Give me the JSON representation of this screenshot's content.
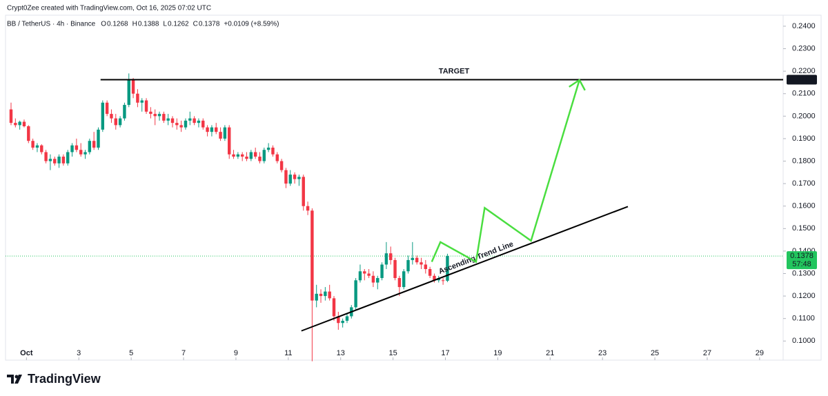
{
  "chart_data": {
    "type": "candlestick",
    "attribution": "Crypt0Zee created with TradingView.com, Oct 16, 2025 07:02 UTC",
    "symbol": "BB / TetherUS · 4h · Binance",
    "ohlc_header": [
      {
        "label": "O",
        "value": "0.1268"
      },
      {
        "label": "H",
        "value": "0.1388"
      },
      {
        "label": "L",
        "value": "0.1262"
      },
      {
        "label": "C",
        "value": "0.1378"
      }
    ],
    "change": "+0.0109 (+8.59%)",
    "brand": "TradingView",
    "up_color": "#089981",
    "down_color": "#f23645",
    "ohlc": [
      [
        0.203,
        0.206,
        0.196,
        0.197
      ],
      [
        0.197,
        0.199,
        0.195,
        0.196
      ],
      [
        0.196,
        0.198,
        0.194,
        0.1975
      ],
      [
        0.1975,
        0.1985,
        0.195,
        0.1955
      ],
      [
        0.1955,
        0.196,
        0.188,
        0.189
      ],
      [
        0.189,
        0.19,
        0.185,
        0.186
      ],
      [
        0.186,
        0.188,
        0.184,
        0.187
      ],
      [
        0.187,
        0.1875,
        0.183,
        0.184
      ],
      [
        0.184,
        0.185,
        0.179,
        0.18
      ],
      [
        0.18,
        0.183,
        0.176,
        0.181
      ],
      [
        0.181,
        0.182,
        0.178,
        0.179
      ],
      [
        0.179,
        0.183,
        0.177,
        0.182
      ],
      [
        0.182,
        0.183,
        0.178,
        0.179
      ],
      [
        0.179,
        0.185,
        0.178,
        0.184
      ],
      [
        0.184,
        0.188,
        0.182,
        0.187
      ],
      [
        0.187,
        0.19,
        0.184,
        0.185
      ],
      [
        0.185,
        0.188,
        0.182,
        0.183
      ],
      [
        0.183,
        0.185,
        0.181,
        0.184
      ],
      [
        0.184,
        0.19,
        0.183,
        0.189
      ],
      [
        0.189,
        0.193,
        0.185,
        0.186
      ],
      [
        0.186,
        0.195,
        0.185,
        0.194
      ],
      [
        0.194,
        0.207,
        0.193,
        0.206
      ],
      [
        0.206,
        0.207,
        0.2,
        0.201
      ],
      [
        0.201,
        0.203,
        0.197,
        0.199
      ],
      [
        0.199,
        0.201,
        0.194,
        0.196
      ],
      [
        0.196,
        0.2,
        0.195,
        0.199
      ],
      [
        0.199,
        0.206,
        0.198,
        0.205
      ],
      [
        0.205,
        0.219,
        0.204,
        0.216
      ],
      [
        0.216,
        0.217,
        0.208,
        0.21
      ],
      [
        0.21,
        0.212,
        0.204,
        0.206
      ],
      [
        0.206,
        0.208,
        0.202,
        0.207
      ],
      [
        0.207,
        0.208,
        0.201,
        0.202
      ],
      [
        0.202,
        0.204,
        0.199,
        0.201
      ],
      [
        0.201,
        0.203,
        0.196,
        0.2
      ],
      [
        0.2,
        0.202,
        0.198,
        0.201
      ],
      [
        0.201,
        0.202,
        0.197,
        0.198
      ],
      [
        0.198,
        0.201,
        0.196,
        0.199
      ],
      [
        0.199,
        0.2,
        0.195,
        0.197
      ],
      [
        0.197,
        0.199,
        0.194,
        0.196
      ],
      [
        0.196,
        0.198,
        0.193,
        0.195
      ],
      [
        0.195,
        0.199,
        0.194,
        0.198
      ],
      [
        0.198,
        0.202,
        0.196,
        0.199
      ],
      [
        0.199,
        0.2,
        0.196,
        0.197
      ],
      [
        0.197,
        0.199,
        0.195,
        0.198
      ],
      [
        0.198,
        0.199,
        0.194,
        0.195
      ],
      [
        0.195,
        0.196,
        0.191,
        0.193
      ],
      [
        0.193,
        0.196,
        0.191,
        0.195
      ],
      [
        0.195,
        0.197,
        0.192,
        0.193
      ],
      [
        0.193,
        0.195,
        0.189,
        0.19
      ],
      [
        0.19,
        0.196,
        0.189,
        0.195
      ],
      [
        0.195,
        0.196,
        0.181,
        0.183
      ],
      [
        0.183,
        0.185,
        0.181,
        0.182
      ],
      [
        0.182,
        0.184,
        0.181,
        0.183
      ],
      [
        0.183,
        0.184,
        0.18,
        0.182
      ],
      [
        0.182,
        0.184,
        0.18,
        0.181
      ],
      [
        0.181,
        0.185,
        0.18,
        0.184
      ],
      [
        0.184,
        0.186,
        0.181,
        0.182
      ],
      [
        0.182,
        0.184,
        0.179,
        0.18
      ],
      [
        0.18,
        0.186,
        0.179,
        0.185
      ],
      [
        0.185,
        0.188,
        0.184,
        0.186
      ],
      [
        0.186,
        0.187,
        0.182,
        0.183
      ],
      [
        0.183,
        0.184,
        0.179,
        0.18
      ],
      [
        0.18,
        0.181,
        0.175,
        0.176
      ],
      [
        0.176,
        0.177,
        0.168,
        0.17
      ],
      [
        0.17,
        0.176,
        0.169,
        0.174
      ],
      [
        0.174,
        0.175,
        0.17,
        0.172
      ],
      [
        0.172,
        0.174,
        0.169,
        0.173
      ],
      [
        0.173,
        0.174,
        0.158,
        0.16
      ],
      [
        0.16,
        0.162,
        0.156,
        0.158
      ],
      [
        0.158,
        0.159,
        0.091,
        0.118
      ],
      [
        0.118,
        0.125,
        0.115,
        0.121
      ],
      [
        0.121,
        0.123,
        0.117,
        0.12
      ],
      [
        0.12,
        0.124,
        0.118,
        0.122
      ],
      [
        0.122,
        0.125,
        0.118,
        0.119
      ],
      [
        0.119,
        0.12,
        0.109,
        0.111
      ],
      [
        0.111,
        0.113,
        0.105,
        0.108
      ],
      [
        0.108,
        0.11,
        0.106,
        0.109
      ],
      [
        0.109,
        0.112,
        0.108,
        0.111
      ],
      [
        0.111,
        0.116,
        0.11,
        0.115
      ],
      [
        0.115,
        0.128,
        0.114,
        0.127
      ],
      [
        0.127,
        0.134,
        0.126,
        0.131
      ],
      [
        0.131,
        0.132,
        0.127,
        0.13
      ],
      [
        0.13,
        0.132,
        0.128,
        0.129
      ],
      [
        0.129,
        0.131,
        0.124,
        0.126
      ],
      [
        0.126,
        0.129,
        0.123,
        0.128
      ],
      [
        0.128,
        0.135,
        0.127,
        0.134
      ],
      [
        0.134,
        0.144,
        0.132,
        0.139
      ],
      [
        0.139,
        0.142,
        0.134,
        0.136
      ],
      [
        0.136,
        0.137,
        0.127,
        0.128
      ],
      [
        0.128,
        0.129,
        0.12,
        0.124
      ],
      [
        0.124,
        0.132,
        0.123,
        0.131
      ],
      [
        0.131,
        0.138,
        0.13,
        0.136
      ],
      [
        0.136,
        0.144,
        0.134,
        0.137
      ],
      [
        0.137,
        0.138,
        0.134,
        0.135
      ],
      [
        0.135,
        0.137,
        0.132,
        0.134
      ],
      [
        0.134,
        0.136,
        0.13,
        0.132
      ],
      [
        0.132,
        0.133,
        0.128,
        0.129
      ],
      [
        0.129,
        0.13,
        0.126,
        0.127
      ],
      [
        0.127,
        0.129,
        0.126,
        0.128
      ],
      [
        0.127,
        0.128,
        0.125,
        0.1268
      ],
      [
        0.1268,
        0.1388,
        0.1262,
        0.1378
      ]
    ],
    "xlim": [
      0.2,
      29.9
    ],
    "xticks": [
      {
        "value": 1,
        "label": "Oct"
      },
      3,
      5,
      7,
      9,
      11,
      13,
      15,
      17,
      19,
      21,
      23,
      25,
      27,
      29
    ],
    "ylim": [
      0.0915,
      0.2449
    ],
    "yticks": [
      {
        "value": 0.1,
        "label": "0.1000"
      },
      {
        "value": 0.11,
        "label": "0.1100"
      },
      {
        "value": 0.12,
        "label": "0.1200"
      },
      {
        "value": 0.13,
        "label": "0.1300"
      },
      {
        "value": 0.14,
        "label": "0.1400"
      },
      {
        "value": 0.15,
        "label": "0.1500"
      },
      {
        "value": 0.16,
        "label": "0.1600"
      },
      {
        "value": 0.17,
        "label": "0.1700"
      },
      {
        "value": 0.18,
        "label": "0.1800"
      },
      {
        "value": 0.19,
        "label": "0.1900"
      },
      {
        "value": 0.2,
        "label": "0.2000"
      },
      {
        "value": 0.21,
        "label": "0.2100"
      },
      {
        "value": 0.22,
        "label": "0.2200"
      },
      {
        "value": 0.23,
        "label": "0.2300"
      },
      {
        "value": 0.24,
        "label": "0.2400"
      }
    ],
    "target": {
      "label": "TARGET",
      "value": 0.2162,
      "tag": "0.2162",
      "x_start": 3.83,
      "color": "#2962ff"
    },
    "current_price": {
      "value": 0.1378,
      "tag": "0.1378",
      "countdown": "57:48",
      "color": "#22c55e"
    },
    "trend_line": {
      "label": "Ascending Trend Line",
      "color": "#f57c00",
      "points": [
        [
          11.5,
          0.1045
        ],
        [
          23.97,
          0.1598
        ]
      ]
    },
    "projection": {
      "color": "#4ade40",
      "points": [
        [
          16.48,
          0.1352
        ],
        [
          16.81,
          0.144
        ],
        [
          18.17,
          0.1352
        ],
        [
          18.5,
          0.1592
        ],
        [
          20.27,
          0.1446
        ],
        [
          22.12,
          0.2161
        ]
      ]
    }
  }
}
